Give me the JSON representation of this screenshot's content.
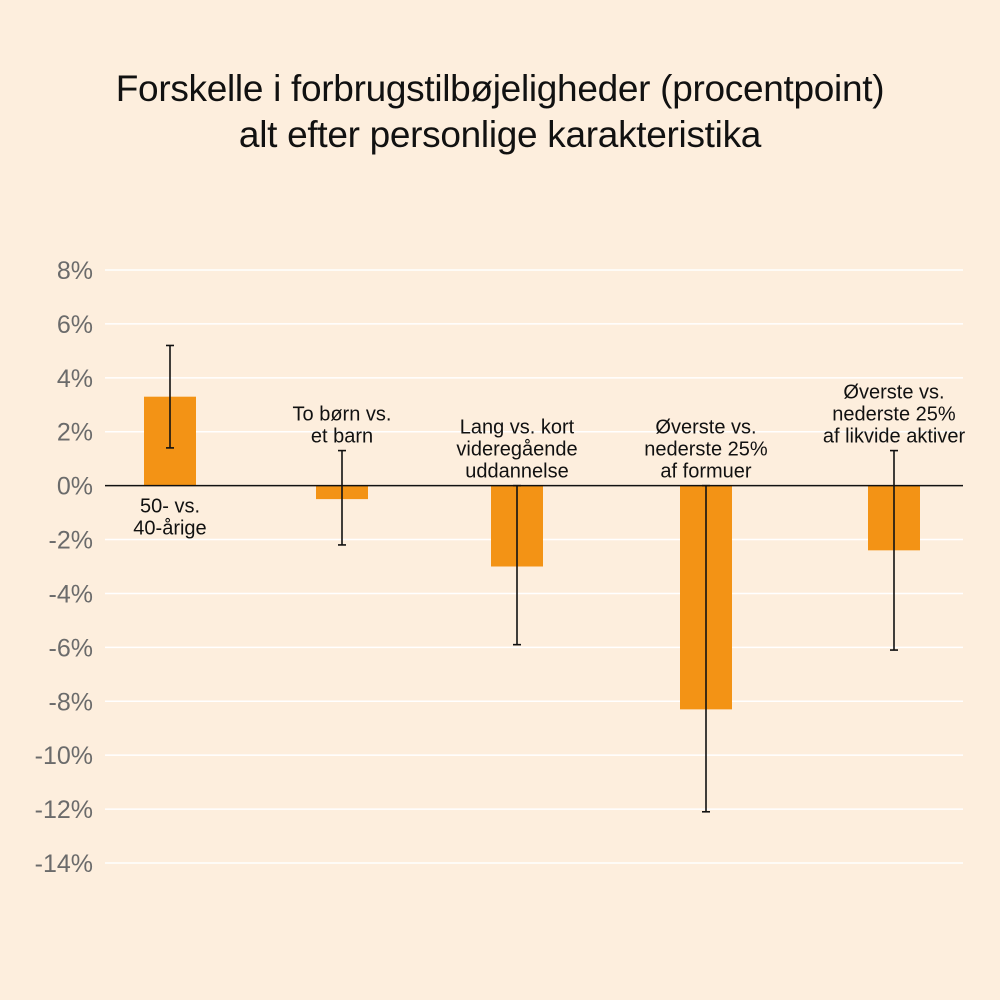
{
  "colors": {
    "background": "#fdeedd",
    "bar": "#f39315",
    "grid": "#ffffff",
    "zero_line": "#111111",
    "error_bar": "#111111",
    "tick_text": "#6b6b6b",
    "title_text": "#111111"
  },
  "chart_data": {
    "type": "bar",
    "title": "Forskelle i forbrugstilbøjeligheder (procentpoint) alt efter personlige karakteristika",
    "title_lines": [
      "Forskelle i forbrugstilbøjeligheder (procentpoint)",
      "alt efter personlige karakteristika"
    ],
    "xlabel": "",
    "ylabel": "",
    "ylim": [
      -14,
      8
    ],
    "yticks": [
      8,
      6,
      4,
      2,
      0,
      -2,
      -4,
      -6,
      -8,
      -10,
      -12,
      -14
    ],
    "ytick_labels": [
      "8%",
      "6%",
      "4%",
      "2%",
      "0%",
      "-2%",
      "-4%",
      "-6%",
      "-8%",
      "-10%",
      "-12%",
      "-14%"
    ],
    "grid": true,
    "categories": [
      "50- vs. 40-årige",
      "To børn vs. et barn",
      "Lang vs. kort videregående uddannelse",
      "Øverste vs. nederste 25% af formuer",
      "Øverste vs. nederste 25% af likvide aktiver"
    ],
    "category_label_lines": [
      [
        "50- vs.",
        "40-årige"
      ],
      [
        "To børn vs.",
        "et barn"
      ],
      [
        "Lang vs. kort",
        "videregående",
        "uddannelse"
      ],
      [
        "Øverste vs.",
        "nederste 25%",
        "af formuer"
      ],
      [
        "Øverste vs.",
        "nederste 25%",
        "af likvide aktiver"
      ]
    ],
    "category_label_position": [
      "below",
      "above",
      "above",
      "above",
      "above"
    ],
    "values": [
      3.3,
      -0.5,
      -3.0,
      -8.3,
      -2.4
    ],
    "error_low": [
      1.4,
      -2.2,
      -5.9,
      -12.1,
      -6.1
    ],
    "error_high": [
      5.2,
      1.3,
      0.0,
      0.0,
      1.3
    ]
  }
}
